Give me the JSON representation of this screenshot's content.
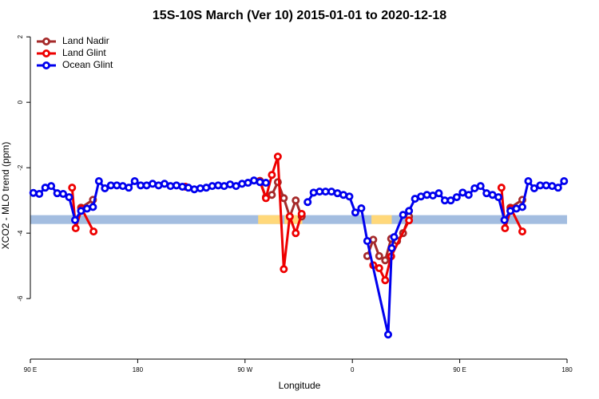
{
  "chart_data": {
    "type": "line",
    "title": "15S-10S March (Ver 10)   2015-01-01 to 2020-12-18",
    "x_label": "Longitude",
    "y_label": "XCO2 - MLO trend (ppm)",
    "xlim": [
      90,
      540
    ],
    "ylim": [
      -7.85,
      2.2
    ],
    "xticks": [
      {
        "value": 90,
        "label": "90 E"
      },
      180,
      {
        "value": 270,
        "label": "90 W"
      },
      {
        "value": 360,
        "label": "0"
      },
      {
        "value": 450,
        "label": "90 E"
      },
      {
        "value": 540,
        "label": "180"
      }
    ],
    "yticks": [
      -6,
      -4,
      -2,
      0,
      2
    ],
    "legend": "top-left",
    "band": {
      "ylim": [
        -3.72,
        -3.45
      ],
      "color": "#a3bde0"
    },
    "highlights": {
      "color": "#ffd87a",
      "ranges": [
        [
          281,
          301
        ],
        [
          303,
          318
        ],
        [
          376,
          393
        ]
      ]
    },
    "series": [
      {
        "name": "Land Nadir",
        "color": "#a52a2a",
        "x": [
          132.5,
          142.5,
          200,
          282.5,
          287.5,
          292.5,
          297.5,
          302.5,
          307.5,
          312.5,
          317.5,
          345,
          372.5,
          377.5,
          382.5,
          387.5,
          392.5,
          397.5,
          402.5,
          407.5,
          450,
          492.5,
          502.5
        ],
        "values": [
          -3.22,
          -2.98,
          null,
          -2.4,
          -2.9,
          -2.83,
          -2.44,
          -2.93,
          -3.5,
          -3.0,
          -3.49,
          null,
          -4.7,
          -4.2,
          -4.7,
          -4.83,
          -4.17,
          -4.24,
          -4.0,
          -3.49,
          null,
          -3.22,
          -2.98
        ]
      },
      {
        "name": "Land Glint",
        "color": "#ee0000",
        "x": [
          125,
          128,
          133,
          143,
          180,
          220,
          250,
          282.5,
          287.5,
          292.5,
          297.5,
          302.5,
          307.5,
          312.5,
          317.5,
          345,
          377.5,
          382.5,
          387.5,
          392.5,
          407.5,
          450,
          485,
          488,
          493,
          502.5
        ],
        "values": [
          -2.61,
          -3.85,
          -3.25,
          -3.95,
          null,
          -2.58,
          null,
          -2.42,
          -2.93,
          -2.22,
          -1.66,
          -5.1,
          -3.49,
          -4.0,
          -3.41,
          null,
          -4.98,
          -5.07,
          -5.44,
          -4.71,
          -3.61,
          null,
          -2.61,
          -3.85,
          -3.25,
          -3.95
        ]
      },
      {
        "name": "Ocean Glint",
        "color": "#0000ee",
        "x": [
          92.5,
          97.5,
          102.5,
          107.5,
          112.5,
          117.5,
          122.5,
          127.5,
          132.5,
          137.5,
          142.5,
          147.5,
          152.5,
          157.5,
          162.5,
          167.5,
          172.5,
          177.5,
          182.5,
          187.5,
          192.5,
          197.5,
          202.5,
          207.5,
          212.5,
          217.5,
          222.5,
          227.5,
          232.5,
          237.5,
          242.5,
          247.5,
          252.5,
          257.5,
          262.5,
          267.5,
          272.5,
          277.5,
          282.5,
          287.5,
          305,
          322.5,
          327.5,
          332.5,
          337.5,
          342.5,
          347.5,
          352.5,
          357.5,
          362.5,
          367.5,
          372.5,
          390,
          393,
          395,
          402.5,
          407.5,
          412.5,
          417.5,
          422.5,
          427.5,
          432.5,
          437.5,
          442.5,
          447.5,
          452.5,
          457.5,
          462.5,
          467.5,
          472.5,
          477.5,
          482.5,
          487.5,
          492.5,
          497.5,
          502.5,
          507.5,
          512.5,
          517.5,
          522.5,
          527.5,
          532.5,
          537.5
        ],
        "values": [
          -2.77,
          -2.8,
          -2.61,
          -2.56,
          -2.78,
          -2.8,
          -2.9,
          -3.6,
          -3.32,
          -3.25,
          -3.2,
          -2.41,
          -2.63,
          -2.54,
          -2.54,
          -2.56,
          -2.61,
          -2.41,
          -2.54,
          -2.54,
          -2.49,
          -2.54,
          -2.49,
          -2.56,
          -2.54,
          -2.58,
          -2.61,
          -2.66,
          -2.63,
          -2.61,
          -2.56,
          -2.54,
          -2.56,
          -2.51,
          -2.56,
          -2.49,
          -2.46,
          -2.39,
          -2.44,
          -2.46,
          null,
          -3.05,
          -2.76,
          -2.73,
          -2.73,
          -2.73,
          -2.78,
          -2.83,
          -2.88,
          -3.37,
          -3.24,
          -4.24,
          -7.1,
          -4.46,
          -4.12,
          -3.44,
          -3.32,
          -2.95,
          -2.88,
          -2.83,
          -2.85,
          -2.78,
          -3.0,
          -3.0,
          -2.9,
          -2.76,
          -2.83,
          -2.63,
          -2.56,
          -2.78,
          -2.83,
          -2.9,
          -3.6,
          -3.32,
          -3.25,
          -3.2,
          -2.41,
          -2.63,
          -2.54,
          -2.54,
          -2.56,
          -2.61,
          -2.41
        ]
      }
    ]
  }
}
